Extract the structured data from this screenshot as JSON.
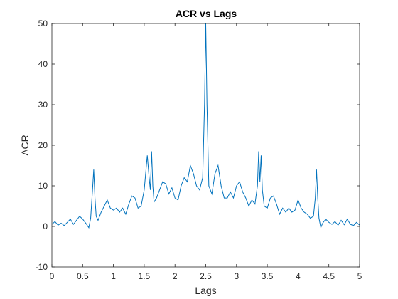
{
  "chart_data": {
    "type": "line",
    "title": "ACR vs Lags",
    "xlabel": "Lags",
    "ylabel": "ACR",
    "xlim": [
      0,
      5
    ],
    "ylim": [
      -10,
      50
    ],
    "xticks": [
      "0",
      "0.5",
      "1",
      "1.5",
      "2",
      "2.5",
      "3",
      "3.5",
      "4",
      "4.5",
      "5"
    ],
    "yticks": [
      "-10",
      "0",
      "10",
      "20",
      "30",
      "40",
      "50"
    ],
    "grid": false,
    "line_color": "#0072BD",
    "series": [
      {
        "x": [
          0,
          0.05,
          0.1,
          0.15,
          0.2,
          0.25,
          0.3,
          0.35,
          0.4,
          0.45,
          0.5,
          0.55,
          0.6,
          0.63,
          0.66,
          0.68,
          0.7,
          0.72,
          0.75,
          0.8,
          0.85,
          0.9,
          0.95,
          1.0,
          1.05,
          1.1,
          1.15,
          1.2,
          1.25,
          1.3,
          1.35,
          1.4,
          1.45,
          1.5,
          1.55,
          1.58,
          1.6,
          1.62,
          1.64,
          1.66,
          1.7,
          1.75,
          1.8,
          1.85,
          1.9,
          1.95,
          2.0,
          2.05,
          2.1,
          2.15,
          2.2,
          2.25,
          2.3,
          2.35,
          2.4,
          2.45,
          2.48,
          2.5,
          2.52,
          2.55,
          2.6,
          2.65,
          2.7,
          2.75,
          2.8,
          2.85,
          2.9,
          2.95,
          3.0,
          3.05,
          3.1,
          3.15,
          3.2,
          3.25,
          3.3,
          3.34,
          3.36,
          3.38,
          3.4,
          3.42,
          3.45,
          3.5,
          3.55,
          3.6,
          3.65,
          3.7,
          3.75,
          3.8,
          3.85,
          3.9,
          3.95,
          4.0,
          4.05,
          4.1,
          4.15,
          4.2,
          4.25,
          4.28,
          4.3,
          4.32,
          4.34,
          4.37,
          4.4,
          4.45,
          4.5,
          4.55,
          4.6,
          4.65,
          4.7,
          4.75,
          4.8,
          4.85,
          4.9,
          4.95,
          5.0
        ],
        "y": [
          0.5,
          1.2,
          0.3,
          0.8,
          0.2,
          1.0,
          1.8,
          0.5,
          1.5,
          2.5,
          1.8,
          0.8,
          -0.3,
          2.0,
          9.0,
          14.0,
          7.0,
          2.5,
          1.5,
          3.5,
          5.0,
          6.5,
          4.5,
          4.0,
          4.5,
          3.5,
          4.5,
          3.0,
          5.5,
          7.5,
          7.0,
          4.5,
          5.0,
          9.0,
          17.5,
          12.0,
          9.0,
          18.5,
          10.0,
          6.0,
          7.0,
          9.0,
          11.0,
          10.5,
          8.0,
          9.5,
          7.0,
          6.5,
          10.0,
          12.0,
          11.0,
          15.0,
          13.0,
          10.0,
          9.0,
          12.0,
          30.0,
          50.0,
          30.0,
          10.0,
          8.0,
          13.0,
          15.0,
          10.0,
          7.0,
          7.0,
          8.5,
          7.0,
          10.0,
          11.0,
          8.5,
          7.0,
          5.0,
          6.5,
          5.5,
          10.0,
          18.5,
          11.0,
          17.5,
          9.0,
          5.0,
          4.5,
          7.0,
          7.5,
          5.5,
          3.0,
          4.5,
          3.5,
          4.5,
          3.5,
          4.0,
          6.5,
          4.5,
          3.5,
          3.0,
          2.0,
          2.5,
          7.0,
          14.0,
          7.0,
          2.0,
          -0.3,
          0.8,
          1.8,
          1.0,
          0.5,
          1.2,
          0.3,
          1.5,
          0.4,
          1.8,
          0.5,
          0.2,
          1.0,
          0.3
        ]
      }
    ]
  }
}
